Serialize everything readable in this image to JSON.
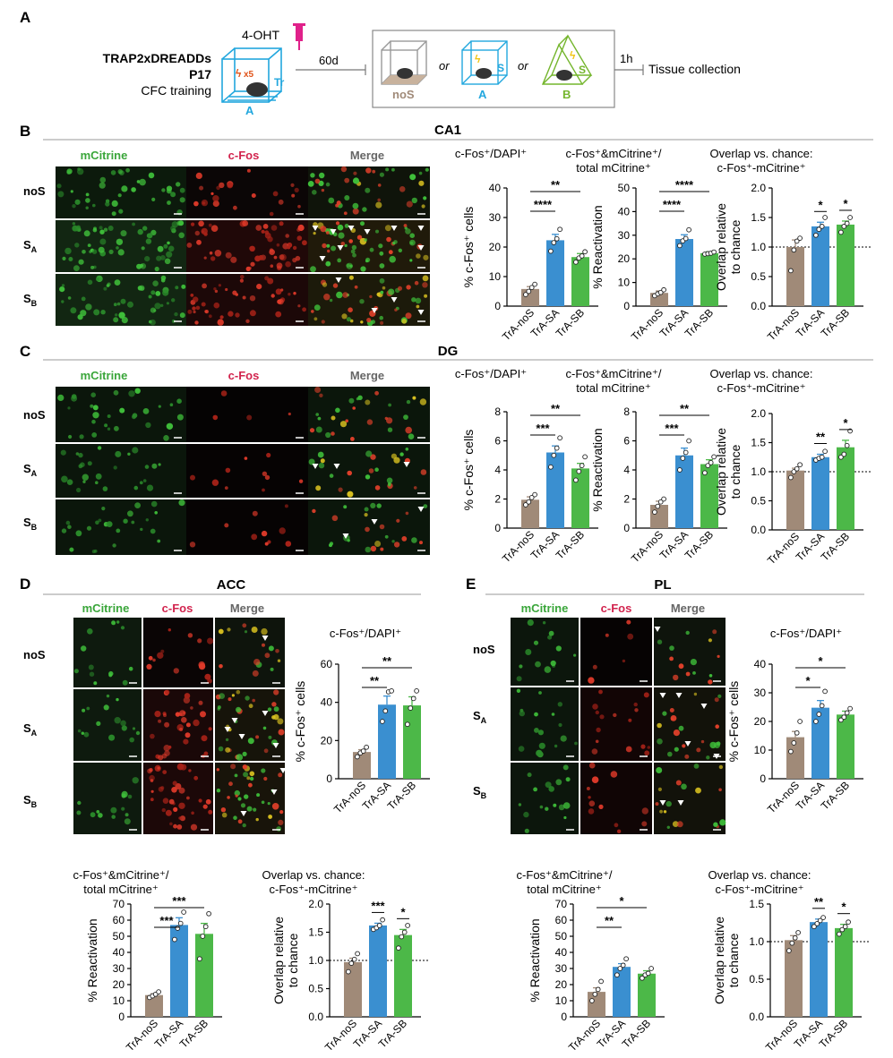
{
  "colors": {
    "noS": "#a08a78",
    "SA": "#3a8fd0",
    "SB": "#4cb848",
    "green_label": "#3aa63a",
    "red_label": "#d2244e",
    "gray_label": "#666666",
    "cyan": "#22a7de",
    "olive": "#74b52c",
    "magenta": "#e0218a"
  },
  "panel_letters": [
    "A",
    "B",
    "C",
    "D",
    "E"
  ],
  "schematic": {
    "drug": "4-OHT",
    "line": "TRAP2xDREADDs",
    "age": "P17",
    "training": "CFC  training",
    "shock_mult": "x5",
    "tr_label": "Tr",
    "ctx_A": "A",
    "delay": "60d",
    "noS": "noS",
    "or1": "or",
    "or2": "or",
    "S": "S",
    "S2": "S",
    "ctx_A2": "A",
    "ctx_B": "B",
    "delay2": "1h",
    "collection": "Tissue collection"
  },
  "regions": {
    "B": "CA1",
    "C": "DG",
    "D": "ACC",
    "E": "PL"
  },
  "image_cols": [
    "mCitrine",
    "c-Fos",
    "Merge"
  ],
  "image_rows": [
    "noS",
    "S",
    "S",
    "A",
    "B"
  ],
  "chart_data": [
    {
      "type": "bar",
      "panel": "B",
      "title": "c-Fos⁺/DAPI⁺",
      "ylabel": "% c-Fos⁺ cells",
      "categories": [
        "TrA-noS",
        "TrA-SA",
        "TrA-SB"
      ],
      "values": [
        5.8,
        22.3,
        16.6
      ],
      "errors": [
        0.8,
        2.0,
        1.2
      ],
      "ylim": [
        0,
        40
      ],
      "yticks": [
        0,
        10,
        20,
        30,
        40
      ],
      "points": [
        [
          3.9,
          5.0,
          6.3,
          7.4
        ],
        [
          18.6,
          21.5,
          22.8,
          26.0
        ],
        [
          14.9,
          16.3,
          17.0,
          18.4
        ]
      ],
      "sig": [
        {
          "from": 0,
          "to": 2,
          "label": "**"
        },
        {
          "from": 0,
          "to": 1,
          "label": "****"
        }
      ],
      "ytick_labels": [
        "0",
        "10",
        "20",
        "30",
        "40"
      ]
    },
    {
      "type": "bar",
      "panel": "B",
      "title": "c-Fos⁺&mCitrine⁺/ total mCitrine⁺",
      "ylabel": "% Reactivation",
      "categories": [
        "TrA-noS",
        "TrA-SA",
        "TrA-SB"
      ],
      "values": [
        5.6,
        28.4,
        22.4
      ],
      "errors": [
        0.8,
        1.8,
        0.6
      ],
      "ylim": [
        0,
        50
      ],
      "yticks": [
        0,
        10,
        20,
        30,
        40,
        50
      ],
      "points": [
        [
          4.4,
          5.2,
          5.8,
          6.9
        ],
        [
          25.6,
          27.6,
          28.6,
          32.3
        ],
        [
          22.0,
          22.2,
          22.4,
          22.9
        ]
      ],
      "sig": [
        {
          "from": 0,
          "to": 2,
          "label": "****"
        },
        {
          "from": 0,
          "to": 1,
          "label": "****"
        }
      ],
      "ytick_labels": [
        "0",
        "10",
        "20",
        "30",
        "40",
        "50"
      ]
    },
    {
      "type": "bar",
      "panel": "B",
      "title": "Overlap vs. chance: c-Fos⁺-mCitrine⁺",
      "ylabel": "Overlap relative to chance",
      "categories": [
        "TrA-noS",
        "TrA-SA",
        "TrA-SB"
      ],
      "values": [
        1.0,
        1.35,
        1.38
      ],
      "errors": [
        0.12,
        0.07,
        0.06
      ],
      "ylim": [
        0,
        2.0
      ],
      "yticks": [
        0,
        0.5,
        1.0,
        1.5,
        2.0
      ],
      "chance": 1.0,
      "points": [
        [
          0.6,
          0.95,
          1.1,
          1.15
        ],
        [
          1.2,
          1.3,
          1.35,
          1.5
        ],
        [
          1.25,
          1.35,
          1.4,
          1.5
        ]
      ],
      "sig": [
        {
          "from": 1,
          "to": 1,
          "label": "*"
        },
        {
          "from": 2,
          "to": 2,
          "label": "*"
        }
      ],
      "ytick_labels": [
        "0.0",
        "0.5",
        "1.0",
        "1.5",
        "2.0"
      ]
    },
    {
      "type": "bar",
      "panel": "C",
      "title": "c-Fos⁺/DAPI⁺",
      "ylabel": "% c-Fos⁺ cells",
      "categories": [
        "TrA-noS",
        "TrA-SA",
        "TrA-SB"
      ],
      "values": [
        1.95,
        5.2,
        4.1
      ],
      "errors": [
        0.2,
        0.45,
        0.35
      ],
      "ylim": [
        0,
        8
      ],
      "yticks": [
        0,
        2,
        4,
        6,
        8
      ],
      "points": [
        [
          1.6,
          1.8,
          2.1,
          2.3
        ],
        [
          4.2,
          5.0,
          5.5,
          6.2
        ],
        [
          3.3,
          3.9,
          4.3,
          4.9
        ]
      ],
      "sig": [
        {
          "from": 0,
          "to": 2,
          "label": "**"
        },
        {
          "from": 0,
          "to": 1,
          "label": "***"
        }
      ],
      "ytick_labels": [
        "0",
        "2",
        "4",
        "6",
        "8"
      ]
    },
    {
      "type": "bar",
      "panel": "C",
      "title": "c-Fos⁺&mCitrine⁺/ total mCitrine⁺",
      "ylabel": "% Reactivation",
      "categories": [
        "TrA-noS",
        "TrA-SA",
        "TrA-SB"
      ],
      "values": [
        1.6,
        5.0,
        4.4
      ],
      "errors": [
        0.25,
        0.5,
        0.3
      ],
      "ylim": [
        0,
        8
      ],
      "yticks": [
        0,
        2,
        4,
        6,
        8
      ],
      "points": [
        [
          1.1,
          1.5,
          1.8,
          2.0
        ],
        [
          4.0,
          4.8,
          5.2,
          6.0
        ],
        [
          3.8,
          4.3,
          4.5,
          4.9
        ]
      ],
      "sig": [
        {
          "from": 0,
          "to": 2,
          "label": "**"
        },
        {
          "from": 0,
          "to": 1,
          "label": "***"
        }
      ],
      "ytick_labels": [
        "0",
        "2",
        "4",
        "6",
        "8"
      ]
    },
    {
      "type": "bar",
      "panel": "C",
      "title": "Overlap vs. chance: c-Fos⁺-mCitrine⁺",
      "ylabel": "Overlap relative to chance",
      "categories": [
        "TrA-noS",
        "TrA-SA",
        "TrA-SB"
      ],
      "values": [
        1.02,
        1.25,
        1.42
      ],
      "errors": [
        0.04,
        0.05,
        0.12
      ],
      "ylim": [
        0,
        2.0
      ],
      "yticks": [
        0,
        0.5,
        1.0,
        1.5,
        2.0
      ],
      "chance": 1.0,
      "points": [
        [
          0.9,
          1.0,
          1.05,
          1.12
        ],
        [
          1.2,
          1.23,
          1.25,
          1.35
        ],
        [
          1.25,
          1.3,
          1.45,
          1.7
        ]
      ],
      "sig": [
        {
          "from": 1,
          "to": 1,
          "label": "**"
        },
        {
          "from": 2,
          "to": 2,
          "label": "*"
        }
      ],
      "ytick_labels": [
        "0.0",
        "0.5",
        "1.0",
        "1.5",
        "2.0"
      ]
    },
    {
      "type": "bar",
      "panel": "D",
      "title": "c-Fos⁺/DAPI⁺",
      "ylabel": "% c-Fos⁺ cells",
      "categories": [
        "TrA-noS",
        "TrA-SA",
        "TrA-SB"
      ],
      "values": [
        14.0,
        38.8,
        38.4
      ],
      "errors": [
        1.2,
        4.5,
        4.5
      ],
      "ylim": [
        0,
        60
      ],
      "yticks": [
        0,
        20,
        40,
        60
      ],
      "points": [
        [
          11.5,
          13.5,
          14.5,
          16.5
        ],
        [
          30.0,
          35.5,
          45.5,
          46.0
        ],
        [
          28.5,
          37.0,
          42.0,
          46.0
        ]
      ],
      "sig": [
        {
          "from": 0,
          "to": 2,
          "label": "**"
        },
        {
          "from": 0,
          "to": 1,
          "label": "**"
        }
      ],
      "ytick_labels": [
        "0",
        "20",
        "40",
        "60"
      ]
    },
    {
      "type": "bar",
      "panel": "D",
      "title": "c-Fos⁺&mCitrine⁺/ total mCitrine⁺",
      "ylabel": "% Reactivation",
      "categories": [
        "TrA-noS",
        "TrA-SA",
        "TrA-SB"
      ],
      "values": [
        13.5,
        57.0,
        51.5
      ],
      "errors": [
        0.8,
        4.5,
        6.5
      ],
      "ylim": [
        0,
        70
      ],
      "yticks": [
        0,
        10,
        20,
        30,
        40,
        50,
        60,
        70
      ],
      "points": [
        [
          12.0,
          13.0,
          14.0,
          15.5
        ],
        [
          48.0,
          55.0,
          58.0,
          65.0
        ],
        [
          36.0,
          50.0,
          56.0,
          64.0
        ]
      ],
      "sig": [
        {
          "from": 0,
          "to": 2,
          "label": "***"
        },
        {
          "from": 0,
          "to": 1,
          "label": "***"
        }
      ],
      "ytick_labels": [
        "0",
        "10",
        "20",
        "30",
        "40",
        "50",
        "60",
        "70"
      ]
    },
    {
      "type": "bar",
      "panel": "D",
      "title": "Overlap vs. chance: c-Fos⁺-mCitrine⁺",
      "ylabel": "Overlap relative to chance",
      "categories": [
        "TrA-noS",
        "TrA-SA",
        "TrA-SB"
      ],
      "values": [
        0.97,
        1.62,
        1.45
      ],
      "errors": [
        0.07,
        0.04,
        0.1
      ],
      "ylim": [
        0,
        2.0
      ],
      "yticks": [
        0,
        0.5,
        1.0,
        1.5,
        2.0
      ],
      "chance": 1.0,
      "points": [
        [
          0.8,
          0.95,
          1.02,
          1.12
        ],
        [
          1.55,
          1.58,
          1.62,
          1.72
        ],
        [
          1.22,
          1.42,
          1.5,
          1.62
        ]
      ],
      "sig": [
        {
          "from": 1,
          "to": 1,
          "label": "***"
        },
        {
          "from": 2,
          "to": 2,
          "label": "*"
        }
      ],
      "ytick_labels": [
        "0.0",
        "0.5",
        "1.0",
        "1.5",
        "2.0"
      ]
    },
    {
      "type": "bar",
      "panel": "E",
      "title": "c-Fos⁺/DAPI⁺",
      "ylabel": "% c-Fos⁺ cells",
      "categories": [
        "TrA-noS",
        "TrA-SA",
        "TrA-SB"
      ],
      "values": [
        14.5,
        24.8,
        22.4
      ],
      "errors": [
        2.0,
        2.5,
        1.2
      ],
      "ylim": [
        0,
        40
      ],
      "yticks": [
        0,
        10,
        20,
        30,
        40
      ],
      "points": [
        [
          9.5,
          12.5,
          16.0,
          20.0
        ],
        [
          20.0,
          22.5,
          25.5,
          30.5
        ],
        [
          20.5,
          21.5,
          23.0,
          24.5
        ]
      ],
      "sig": [
        {
          "from": 0,
          "to": 2,
          "label": "*"
        },
        {
          "from": 0,
          "to": 1,
          "label": "*"
        }
      ],
      "ytick_labels": [
        "0",
        "10",
        "20",
        "30",
        "40"
      ]
    },
    {
      "type": "bar",
      "panel": "E",
      "title": "c-Fos⁺&mCitrine⁺/ total mCitrine⁺",
      "ylabel": "% Reactivation",
      "categories": [
        "TrA-noS",
        "TrA-SA",
        "TrA-SB"
      ],
      "values": [
        15.5,
        31.0,
        26.8
      ],
      "errors": [
        2.5,
        2.0,
        1.8
      ],
      "ylim": [
        0,
        70
      ],
      "yticks": [
        0,
        10,
        20,
        30,
        40,
        50,
        60,
        70
      ],
      "points": [
        [
          10.0,
          14.0,
          17.0,
          22.0
        ],
        [
          26.0,
          30.0,
          32.0,
          36.0
        ],
        [
          24.0,
          26.0,
          27.0,
          30.0
        ]
      ],
      "sig": [
        {
          "from": 0,
          "to": 2,
          "label": "*"
        },
        {
          "from": 0,
          "to": 1,
          "label": "**"
        }
      ],
      "ytick_labels": [
        "0",
        "10",
        "20",
        "30",
        "40",
        "50",
        "60",
        "70"
      ]
    },
    {
      "type": "bar",
      "panel": "E",
      "title": "Overlap vs. chance: c-Fos⁺-mCitrine⁺",
      "ylabel": "Overlap relative to chance",
      "categories": [
        "TrA-noS",
        "TrA-SA",
        "TrA-SB"
      ],
      "values": [
        1.02,
        1.26,
        1.18
      ],
      "errors": [
        0.06,
        0.04,
        0.05
      ],
      "ylim": [
        0,
        1.5
      ],
      "yticks": [
        0,
        0.5,
        1.0,
        1.5
      ],
      "chance": 1.0,
      "points": [
        [
          0.88,
          0.98,
          1.05,
          1.12
        ],
        [
          1.2,
          1.24,
          1.28,
          1.32
        ],
        [
          1.1,
          1.16,
          1.2,
          1.26
        ]
      ],
      "sig": [
        {
          "from": 1,
          "to": 1,
          "label": "**"
        },
        {
          "from": 2,
          "to": 2,
          "label": "*"
        }
      ],
      "ytick_labels": [
        "0.0",
        "0.5",
        "1.0",
        "1.5"
      ]
    }
  ]
}
